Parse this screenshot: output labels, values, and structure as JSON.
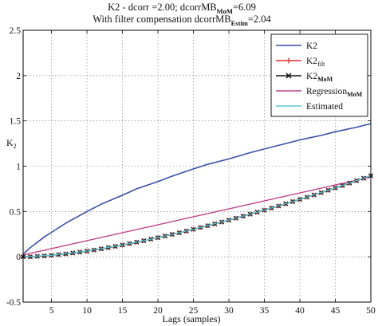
{
  "chart_data": {
    "type": "line",
    "title_line1": {
      "main": "K2 - dcorr =2.00; dcorrMB",
      "sub": "MoM",
      "tail": "=6.09"
    },
    "title_line2": {
      "main": "With filter compensation dcorrMB",
      "sub": "Estim",
      "tail": "=2.04"
    },
    "xlabel": "Lags (samples)",
    "ylabel": {
      "main": "K",
      "sub": "2"
    },
    "xlim": [
      1,
      50
    ],
    "ylim": [
      -0.5,
      2.5
    ],
    "xticks": [
      5,
      10,
      15,
      20,
      25,
      30,
      35,
      40,
      45,
      50
    ],
    "yticks": [
      -0.5,
      0,
      0.5,
      1,
      1.5,
      2,
      2.5
    ],
    "grid": true,
    "legend_position": "top-right",
    "series": [
      {
        "name": "K2",
        "name_main": "K2",
        "name_sub": "",
        "color": "#3a4fa8",
        "marker": "none",
        "x": [
          1,
          2,
          3,
          4,
          5,
          7,
          10,
          12,
          15,
          17,
          20,
          22,
          25,
          27,
          30,
          33,
          35,
          38,
          40,
          43,
          45,
          48,
          50
        ],
        "y": [
          0.03,
          0.1,
          0.16,
          0.22,
          0.27,
          0.37,
          0.5,
          0.58,
          0.68,
          0.75,
          0.83,
          0.89,
          0.97,
          1.02,
          1.08,
          1.15,
          1.19,
          1.25,
          1.29,
          1.34,
          1.38,
          1.43,
          1.47
        ]
      },
      {
        "name": "K2filt",
        "name_main": "K2",
        "name_sub": "filt",
        "color": "#e03030",
        "marker": "plus",
        "x": [
          1,
          2,
          3,
          4,
          5,
          6,
          7,
          8,
          9,
          10,
          11,
          12,
          13,
          14,
          15,
          16,
          17,
          18,
          19,
          20,
          21,
          22,
          23,
          24,
          25,
          26,
          27,
          28,
          29,
          30,
          31,
          32,
          33,
          34,
          35,
          36,
          37,
          38,
          39,
          40,
          41,
          42,
          43,
          44,
          45,
          46,
          47,
          48,
          49,
          50
        ],
        "y": [
          0.0,
          0.0,
          0.005,
          0.01,
          0.016,
          0.024,
          0.032,
          0.042,
          0.052,
          0.063,
          0.075,
          0.088,
          0.101,
          0.115,
          0.13,
          0.145,
          0.161,
          0.177,
          0.194,
          0.211,
          0.229,
          0.247,
          0.265,
          0.284,
          0.303,
          0.323,
          0.343,
          0.363,
          0.384,
          0.405,
          0.426,
          0.448,
          0.47,
          0.492,
          0.515,
          0.538,
          0.561,
          0.585,
          0.609,
          0.633,
          0.658,
          0.683,
          0.708,
          0.734,
          0.76,
          0.786,
          0.813,
          0.84,
          0.867,
          0.895
        ]
      },
      {
        "name": "K2MoM",
        "name_main": "K2",
        "name_sub": "MoM",
        "color": "#111111",
        "marker": "x",
        "x": [
          1,
          2,
          3,
          4,
          5,
          6,
          7,
          8,
          9,
          10,
          11,
          12,
          13,
          14,
          15,
          16,
          17,
          18,
          19,
          20,
          21,
          22,
          23,
          24,
          25,
          26,
          27,
          28,
          29,
          30,
          31,
          32,
          33,
          34,
          35,
          36,
          37,
          38,
          39,
          40,
          41,
          42,
          43,
          44,
          45,
          46,
          47,
          48,
          49,
          50
        ],
        "y": [
          0.0,
          0.0,
          0.005,
          0.01,
          0.016,
          0.024,
          0.032,
          0.042,
          0.052,
          0.063,
          0.075,
          0.088,
          0.101,
          0.115,
          0.13,
          0.145,
          0.161,
          0.177,
          0.194,
          0.211,
          0.229,
          0.247,
          0.265,
          0.284,
          0.303,
          0.323,
          0.343,
          0.363,
          0.384,
          0.405,
          0.426,
          0.448,
          0.47,
          0.492,
          0.515,
          0.538,
          0.561,
          0.585,
          0.609,
          0.633,
          0.658,
          0.683,
          0.708,
          0.734,
          0.76,
          0.786,
          0.813,
          0.84,
          0.867,
          0.895
        ]
      },
      {
        "name": "RegressionMoM",
        "name_main": "Regression",
        "name_sub": "MoM",
        "color": "#c0408a",
        "marker": "none",
        "x": [
          1,
          50
        ],
        "y": [
          0.02,
          0.88
        ]
      },
      {
        "name": "Estimated",
        "name_main": "Estimated",
        "name_sub": "",
        "color": "#5cc8d8",
        "marker": "none",
        "x": [
          1,
          5,
          10,
          15,
          20,
          25,
          30,
          35,
          40,
          45,
          50
        ],
        "y": [
          0.0,
          0.016,
          0.063,
          0.13,
          0.211,
          0.303,
          0.405,
          0.515,
          0.633,
          0.76,
          0.895
        ]
      }
    ]
  }
}
